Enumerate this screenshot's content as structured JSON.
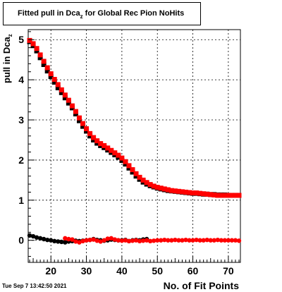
{
  "chart_data": {
    "type": "scatter",
    "title_main": "Fitted pull in Dca",
    "title_sub": "z",
    "title_rest": " for Global Rec Pion NoHits",
    "ylabel_main": "pull in Dca",
    "ylabel_sub": "z",
    "xlabel": "No. of Fit Points",
    "xlim": [
      13.6,
      73.4
    ],
    "ylim": [
      -0.55,
      5.25
    ],
    "x_ticks": [
      20,
      30,
      40,
      50,
      60,
      70
    ],
    "y_ticks": [
      0,
      1,
      2,
      3,
      4,
      5
    ],
    "grid": true,
    "series": [
      {
        "color": "#000000",
        "marker": "square",
        "points": [
          [
            14,
            4.95
          ],
          [
            15,
            4.85
          ],
          [
            16,
            4.72
          ],
          [
            17,
            4.55
          ],
          [
            18,
            4.38
          ],
          [
            19,
            4.22
          ],
          [
            20,
            4.08
          ],
          [
            21,
            3.94
          ],
          [
            22,
            3.8
          ],
          [
            23,
            3.68
          ],
          [
            24,
            3.55
          ],
          [
            25,
            3.42
          ],
          [
            26,
            3.3
          ],
          [
            27,
            3.15
          ],
          [
            28,
            2.98
          ],
          [
            29,
            2.84
          ],
          [
            30,
            2.72
          ],
          [
            31,
            2.6
          ],
          [
            32,
            2.5
          ],
          [
            33,
            2.42
          ],
          [
            34,
            2.36
          ],
          [
            35,
            2.31
          ],
          [
            36,
            2.25
          ],
          [
            37,
            2.19
          ],
          [
            38,
            2.13
          ],
          [
            39,
            2.07
          ],
          [
            40,
            1.99
          ],
          [
            41,
            1.9
          ],
          [
            42,
            1.8
          ],
          [
            43,
            1.7
          ],
          [
            44,
            1.6
          ],
          [
            45,
            1.52
          ],
          [
            46,
            1.45
          ],
          [
            47,
            1.4
          ],
          [
            48,
            1.36
          ],
          [
            49,
            1.33
          ],
          [
            50,
            1.3
          ],
          [
            51,
            1.28
          ],
          [
            52,
            1.26
          ],
          [
            53,
            1.24
          ],
          [
            54,
            1.23
          ],
          [
            55,
            1.22
          ],
          [
            56,
            1.21
          ],
          [
            57,
            1.2
          ],
          [
            58,
            1.19
          ],
          [
            59,
            1.18
          ],
          [
            60,
            1.17
          ],
          [
            61,
            1.17
          ],
          [
            62,
            1.16
          ],
          [
            63,
            1.15
          ],
          [
            64,
            1.15
          ],
          [
            65,
            1.14
          ],
          [
            66,
            1.14
          ],
          [
            67,
            1.13
          ],
          [
            68,
            1.13
          ],
          [
            69,
            1.13
          ],
          [
            70,
            1.12
          ],
          [
            71,
            1.12
          ],
          [
            72,
            1.12
          ],
          [
            73,
            1.12
          ]
        ]
      },
      {
        "color": "#000000",
        "marker": "circle",
        "points": [
          [
            14,
            0.12
          ],
          [
            15,
            0.1
          ],
          [
            16,
            0.07
          ],
          [
            17,
            0.05
          ],
          [
            18,
            0.03
          ],
          [
            19,
            0.01
          ],
          [
            20,
            0.0
          ],
          [
            21,
            -0.02
          ],
          [
            22,
            -0.03
          ],
          [
            23,
            -0.04
          ],
          [
            24,
            -0.05
          ],
          [
            25,
            -0.03
          ],
          [
            26,
            -0.02
          ],
          [
            27,
            -0.01
          ],
          [
            28,
            -0.02
          ],
          [
            29,
            -0.01
          ],
          [
            30,
            0.0
          ],
          [
            31,
            0.01
          ],
          [
            32,
            0.03
          ],
          [
            33,
            0.01
          ],
          [
            34,
            0.0
          ],
          [
            35,
            -0.01
          ],
          [
            36,
            0.0
          ],
          [
            37,
            0.02
          ],
          [
            38,
            0.01
          ],
          [
            39,
            0.0
          ],
          [
            40,
            0.0
          ],
          [
            41,
            0.01
          ],
          [
            42,
            -0.02
          ],
          [
            43,
            0.0
          ],
          [
            44,
            0.01
          ],
          [
            45,
            0.0
          ],
          [
            46,
            0.02
          ],
          [
            47,
            0.03
          ]
        ]
      },
      {
        "color": "#ff0000",
        "marker": "square",
        "points": [
          [
            14,
            4.98
          ],
          [
            15,
            4.9
          ],
          [
            16,
            4.78
          ],
          [
            17,
            4.62
          ],
          [
            18,
            4.46
          ],
          [
            19,
            4.3
          ],
          [
            20,
            4.15
          ],
          [
            21,
            4.01
          ],
          [
            22,
            3.88
          ],
          [
            23,
            3.75
          ],
          [
            24,
            3.62
          ],
          [
            25,
            3.49
          ],
          [
            26,
            3.35
          ],
          [
            27,
            3.21
          ],
          [
            28,
            3.05
          ],
          [
            29,
            2.91
          ],
          [
            30,
            2.78
          ],
          [
            31,
            2.66
          ],
          [
            32,
            2.56
          ],
          [
            33,
            2.48
          ],
          [
            34,
            2.41
          ],
          [
            35,
            2.36
          ],
          [
            36,
            2.3
          ],
          [
            37,
            2.24
          ],
          [
            38,
            2.18
          ],
          [
            39,
            2.12
          ],
          [
            40,
            2.05
          ],
          [
            41,
            1.96
          ],
          [
            42,
            1.86
          ],
          [
            43,
            1.76
          ],
          [
            44,
            1.66
          ],
          [
            45,
            1.57
          ],
          [
            46,
            1.5
          ],
          [
            47,
            1.44
          ],
          [
            48,
            1.39
          ],
          [
            49,
            1.35
          ],
          [
            50,
            1.32
          ],
          [
            51,
            1.3
          ],
          [
            52,
            1.28
          ],
          [
            53,
            1.26
          ],
          [
            54,
            1.24
          ],
          [
            55,
            1.23
          ],
          [
            56,
            1.22
          ],
          [
            57,
            1.21
          ],
          [
            58,
            1.2
          ],
          [
            59,
            1.19
          ],
          [
            60,
            1.18
          ],
          [
            61,
            1.18
          ],
          [
            62,
            1.17
          ],
          [
            63,
            1.16
          ],
          [
            64,
            1.15
          ],
          [
            65,
            1.14
          ],
          [
            66,
            1.13
          ],
          [
            67,
            1.12
          ],
          [
            68,
            1.12
          ],
          [
            69,
            1.12
          ],
          [
            70,
            1.12
          ],
          [
            71,
            1.12
          ],
          [
            72,
            1.12
          ],
          [
            73,
            1.12
          ]
        ]
      },
      {
        "color": "#ff0000",
        "marker": "circle",
        "points": [
          [
            24,
            0.05
          ],
          [
            25,
            0.03
          ],
          [
            26,
            0.02
          ],
          [
            27,
            -0.03
          ],
          [
            28,
            -0.05
          ],
          [
            29,
            -0.02
          ],
          [
            30,
            0.0
          ],
          [
            31,
            0.01
          ],
          [
            32,
            0.02
          ],
          [
            33,
            -0.01
          ],
          [
            34,
            -0.03
          ],
          [
            35,
            0.0
          ],
          [
            36,
            0.04
          ],
          [
            37,
            0.05
          ],
          [
            38,
            0.02
          ],
          [
            39,
            0.0
          ],
          [
            40,
            -0.01
          ],
          [
            41,
            0.0
          ],
          [
            42,
            -0.02
          ],
          [
            43,
            -0.01
          ],
          [
            44,
            0.0
          ],
          [
            45,
            -0.02
          ],
          [
            46,
            -0.01
          ],
          [
            47,
            0.0
          ],
          [
            48,
            -0.02
          ],
          [
            49,
            -0.01
          ],
          [
            50,
            0.0
          ],
          [
            51,
            0.0
          ],
          [
            52,
            0.01
          ],
          [
            53,
            0.0
          ],
          [
            54,
            0.0
          ],
          [
            55,
            0.01
          ],
          [
            56,
            0.0
          ],
          [
            57,
            0.0
          ],
          [
            58,
            0.01
          ],
          [
            59,
            0.0
          ],
          [
            60,
            0.0
          ],
          [
            61,
            0.01
          ],
          [
            62,
            0.0
          ],
          [
            63,
            0.0
          ],
          [
            64,
            0.01
          ],
          [
            65,
            0.0
          ],
          [
            66,
            0.0
          ],
          [
            67,
            0.01
          ],
          [
            68,
            0.0
          ],
          [
            69,
            0.0
          ],
          [
            70,
            0.0
          ],
          [
            71,
            0.0
          ],
          [
            72,
            0.0
          ],
          [
            73,
            -0.01
          ]
        ]
      }
    ]
  },
  "footer": {
    "timestamp": "Tue Sep  7 13:42:50 2021"
  }
}
